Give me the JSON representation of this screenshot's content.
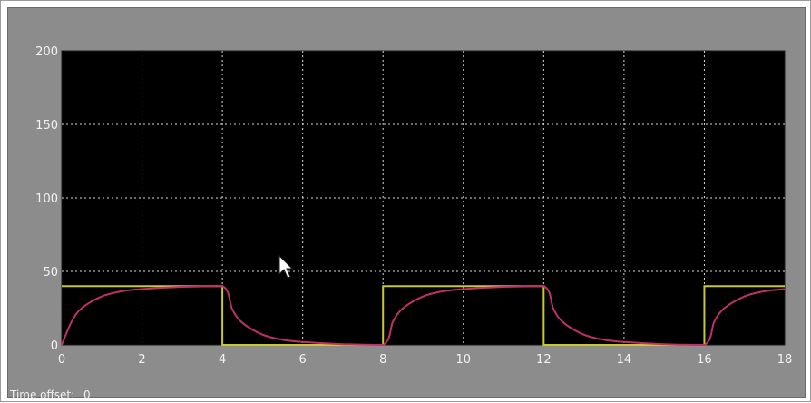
{
  "footer": {
    "time_offset_label": "Time offset:",
    "time_offset_value": "0"
  },
  "colors": {
    "window_bg": "#8c8c8c",
    "plot_bg": "#000000",
    "grid": "#d8d8d8",
    "tick_text": "#f2f2f2",
    "setpoint": "#c8c832",
    "response": "#c0306a"
  },
  "chart_data": {
    "type": "line",
    "title": "",
    "xlabel": "",
    "ylabel": "",
    "xlim": [
      0,
      18
    ],
    "ylim": [
      0,
      200
    ],
    "x_ticks": [
      "0",
      "2",
      "4",
      "6",
      "8",
      "10",
      "12",
      "14",
      "16",
      "18"
    ],
    "y_ticks": [
      "0",
      "50",
      "100",
      "150",
      "200"
    ],
    "grid": true,
    "series": [
      {
        "color": "#c8c832",
        "style": "step",
        "x": [
          0,
          4,
          4,
          8,
          8,
          12,
          12,
          16,
          16,
          18
        ],
        "y": [
          40,
          40,
          0,
          0,
          40,
          40,
          0,
          0,
          40,
          40
        ]
      },
      {
        "color": "#c0306a",
        "style": "smooth",
        "x": [
          0,
          0.25,
          0.5,
          1,
          1.5,
          2,
          3,
          4,
          4.25,
          4.5,
          5,
          5.5,
          6,
          7,
          8,
          8.25,
          8.5,
          9,
          9.5,
          10,
          11,
          12,
          12.25,
          12.5,
          13,
          13.5,
          14,
          15,
          16,
          16.25,
          16.5,
          17,
          17.5,
          18
        ],
        "y": [
          0,
          16,
          25,
          33,
          36.5,
          38,
          39.5,
          40,
          24,
          15,
          7,
          3.5,
          2,
          0.5,
          0,
          16,
          25,
          33,
          36.5,
          38,
          39.5,
          40,
          24,
          15,
          7,
          3.5,
          2,
          0.5,
          0,
          16,
          25,
          33,
          36.5,
          38
        ]
      }
    ]
  }
}
